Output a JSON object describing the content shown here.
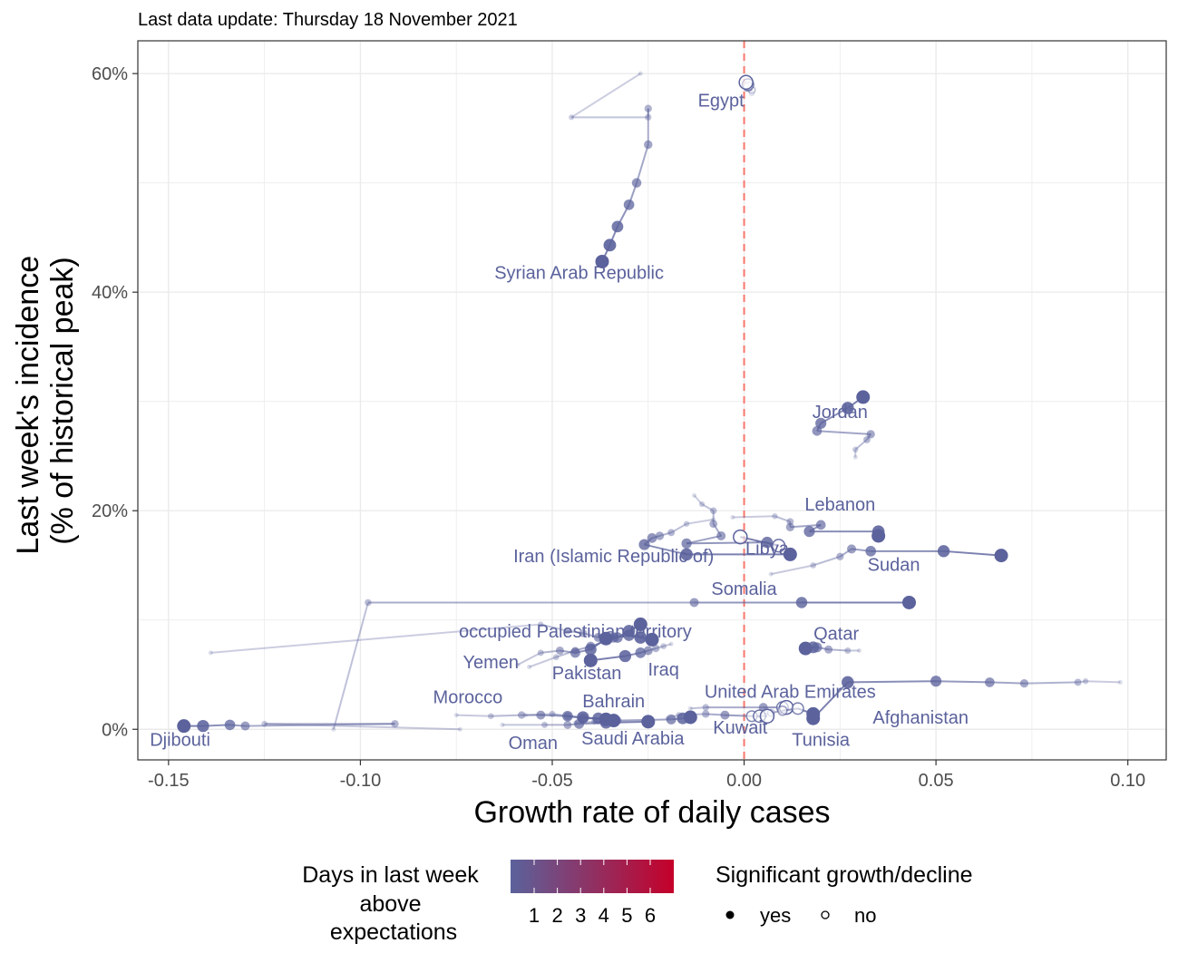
{
  "chart_data": {
    "type": "scatter",
    "subtitle": "Last data update: Thursday 18 November 2021",
    "xlabel": "Growth rate of daily cases",
    "ylabel": [
      "Last week's incidence",
      "(% of historical peak)"
    ],
    "xlim": [
      -0.158,
      0.11
    ],
    "ylim": [
      -2.8,
      63.0
    ],
    "x_ticks": [
      {
        "value": -0.15,
        "label": "-0.15"
      },
      {
        "value": -0.1,
        "label": "-0.10"
      },
      {
        "value": -0.05,
        "label": "-0.05"
      },
      {
        "value": 0.0,
        "label": "0.00"
      },
      {
        "value": 0.05,
        "label": "0.05"
      },
      {
        "value": 0.1,
        "label": "0.10"
      }
    ],
    "y_ticks": [
      {
        "value": 0,
        "label": "0%"
      },
      {
        "value": 20,
        "label": "20%"
      },
      {
        "value": 40,
        "label": "40%"
      },
      {
        "value": 60,
        "label": "60%"
      }
    ],
    "grid": true,
    "reference_line": {
      "x": 0.0,
      "color": "#f8766d",
      "style": "dashed"
    },
    "colors": {
      "series": "#5b629c",
      "low": "#5b629c",
      "high": "#c5002a"
    },
    "series": [
      {
        "name": "Egypt",
        "label_pos": [
          -0.006,
          57.0
        ],
        "points": [
          [
            0.002,
            58.2,
            0
          ],
          [
            0.002,
            58.5,
            0
          ],
          [
            0.001,
            58.8,
            0
          ],
          [
            0.001,
            59.0,
            0
          ],
          [
            0.0005,
            59.2,
            0
          ]
        ]
      },
      {
        "name": "Syrian Arab Republic",
        "label_pos": [
          -0.043,
          41.2
        ],
        "points": [
          [
            -0.027,
            60.0,
            1
          ],
          [
            -0.045,
            56.0,
            1
          ],
          [
            -0.025,
            56.0,
            1
          ],
          [
            -0.025,
            56.8,
            1
          ],
          [
            -0.025,
            53.5,
            1
          ],
          [
            -0.028,
            50.0,
            1
          ],
          [
            -0.03,
            48.0,
            1
          ],
          [
            -0.033,
            46.0,
            1
          ],
          [
            -0.035,
            44.3,
            1
          ],
          [
            -0.037,
            42.8,
            1
          ]
        ]
      },
      {
        "name": "Jordan",
        "label_pos": [
          0.025,
          28.5
        ],
        "points": [
          [
            0.029,
            24.9,
            1
          ],
          [
            0.029,
            25.6,
            1
          ],
          [
            0.032,
            26.5,
            1
          ],
          [
            0.033,
            27.0,
            1
          ],
          [
            0.019,
            27.3,
            1
          ],
          [
            0.02,
            28.0,
            1
          ],
          [
            0.027,
            29.4,
            1
          ],
          [
            0.031,
            30.4,
            1
          ]
        ]
      },
      {
        "name": "Lebanon",
        "label_pos": [
          0.025,
          20.0
        ],
        "points": [
          [
            -0.003,
            19.4,
            1
          ],
          [
            0.008,
            19.5,
            1
          ],
          [
            0.012,
            19.0,
            1
          ],
          [
            0.012,
            18.5,
            1
          ],
          [
            0.02,
            18.7,
            1
          ],
          [
            0.017,
            18.1,
            1
          ],
          [
            0.035,
            18.1,
            1
          ],
          [
            0.035,
            17.7,
            1
          ]
        ]
      },
      {
        "name": "Libya",
        "label_pos": [
          0.006,
          16.0
        ],
        "points": [
          [
            -0.013,
            21.4,
            1
          ],
          [
            -0.011,
            20.6,
            1
          ],
          [
            -0.008,
            20.0,
            1
          ],
          [
            -0.008,
            18.8,
            1
          ],
          [
            -0.006,
            17.7,
            1
          ],
          [
            -0.015,
            17.0,
            1
          ],
          [
            0.006,
            17.1,
            1
          ],
          [
            0.009,
            16.8,
            0
          ],
          [
            -0.001,
            17.6,
            0
          ]
        ]
      },
      {
        "name": "Iran (Islamic Republic of)",
        "label_pos": [
          -0.034,
          15.3
        ],
        "points": [
          [
            -0.008,
            19.2,
            1
          ],
          [
            -0.015,
            18.8,
            1
          ],
          [
            -0.019,
            18.0,
            1
          ],
          [
            -0.022,
            17.7,
            1
          ],
          [
            -0.024,
            17.5,
            1
          ],
          [
            -0.026,
            16.9,
            1
          ],
          [
            -0.015,
            16.0,
            1
          ],
          [
            0.012,
            16.0,
            1
          ]
        ]
      },
      {
        "name": "Sudan",
        "label_pos": [
          0.039,
          14.5
        ],
        "points": [
          [
            0.007,
            14.2,
            1
          ],
          [
            0.018,
            15.0,
            1
          ],
          [
            0.025,
            15.8,
            1
          ],
          [
            0.028,
            16.5,
            1
          ],
          [
            0.033,
            16.3,
            1
          ],
          [
            0.052,
            16.3,
            1
          ],
          [
            0.067,
            15.9,
            1
          ]
        ]
      },
      {
        "name": "Somalia",
        "label_pos": [
          0.0,
          12.3
        ],
        "points": [
          [
            -0.107,
            0.0,
            1
          ],
          [
            -0.098,
            11.6,
            1
          ],
          [
            -0.013,
            11.6,
            1
          ],
          [
            0.015,
            11.6,
            1
          ],
          [
            0.043,
            11.6,
            1
          ]
        ]
      },
      {
        "name": "occupied Palestinian territory",
        "label_pos": [
          -0.044,
          8.4
        ],
        "points": [
          [
            -0.139,
            7.0,
            1
          ],
          [
            -0.053,
            9.6,
            1
          ],
          [
            -0.046,
            9.0,
            1
          ],
          [
            -0.042,
            8.8,
            1
          ],
          [
            -0.038,
            8.4,
            1
          ],
          [
            -0.034,
            8.4,
            1
          ],
          [
            -0.03,
            8.6,
            1
          ],
          [
            -0.027,
            8.4,
            1
          ],
          [
            -0.024,
            8.2,
            1
          ]
        ]
      },
      {
        "name": "Yemen",
        "label_pos": [
          -0.066,
          5.6
        ],
        "points": [
          [
            -0.059,
            5.9,
            1
          ],
          [
            -0.053,
            7.0,
            1
          ],
          [
            -0.048,
            7.2,
            1
          ],
          [
            -0.044,
            7.0,
            1
          ],
          [
            -0.04,
            7.3,
            1
          ],
          [
            -0.036,
            8.3,
            1
          ]
        ]
      },
      {
        "name": "Pakistan",
        "label_pos": [
          -0.041,
          4.6
        ],
        "points": [
          [
            -0.056,
            5.7,
            1
          ],
          [
            -0.049,
            6.6,
            1
          ],
          [
            -0.044,
            7.2,
            1
          ],
          [
            -0.04,
            7.6,
            1
          ],
          [
            -0.033,
            8.4,
            1
          ],
          [
            -0.03,
            9.0,
            1
          ],
          [
            -0.027,
            9.6,
            1
          ]
        ]
      },
      {
        "name": "Iraq",
        "label_pos": [
          -0.021,
          4.9
        ],
        "points": [
          [
            -0.019,
            7.8,
            1
          ],
          [
            -0.021,
            7.6,
            1
          ],
          [
            -0.023,
            7.4,
            1
          ],
          [
            -0.025,
            7.2,
            1
          ],
          [
            -0.027,
            7.0,
            1
          ],
          [
            -0.031,
            6.7,
            1
          ],
          [
            -0.04,
            6.3,
            1
          ]
        ]
      },
      {
        "name": "Qatar",
        "label_pos": [
          0.024,
          8.2
        ],
        "points": [
          [
            0.03,
            7.2,
            1
          ],
          [
            0.027,
            7.2,
            1
          ],
          [
            0.022,
            7.3,
            1
          ],
          [
            0.019,
            7.5,
            1
          ],
          [
            0.018,
            7.5,
            1
          ],
          [
            0.016,
            7.4,
            1
          ]
        ]
      },
      {
        "name": "Afghanistan",
        "label_pos": [
          0.046,
          0.5
        ],
        "points": [
          [
            0.098,
            4.3,
            1
          ],
          [
            0.089,
            4.4,
            1
          ],
          [
            0.087,
            4.3,
            1
          ],
          [
            0.073,
            4.2,
            1
          ],
          [
            0.064,
            4.3,
            1
          ],
          [
            0.05,
            4.4,
            1
          ],
          [
            0.027,
            4.3,
            1
          ],
          [
            0.018,
            1.0,
            1
          ]
        ]
      },
      {
        "name": "United Arab Emirates",
        "label_pos": [
          0.012,
          2.9
        ],
        "points": [
          [
            -0.014,
            1.9,
            1
          ],
          [
            -0.01,
            2.0,
            1
          ],
          [
            0.005,
            2.0,
            1
          ],
          [
            0.01,
            2.0,
            0
          ],
          [
            0.011,
            2.0,
            0
          ]
        ]
      },
      {
        "name": "Tunisia",
        "label_pos": [
          0.02,
          -1.5
        ],
        "points": [
          [
            0.004,
            1.3,
            0
          ],
          [
            0.007,
            1.5,
            0
          ],
          [
            0.01,
            1.7,
            0
          ],
          [
            0.014,
            1.9,
            0
          ],
          [
            0.018,
            1.4,
            1
          ]
        ]
      },
      {
        "name": "Kuwait",
        "label_pos": [
          -0.001,
          -0.4
        ],
        "points": [
          [
            -0.02,
            1.0,
            1
          ],
          [
            -0.017,
            1.3,
            1
          ],
          [
            -0.01,
            1.4,
            1
          ],
          [
            -0.005,
            1.3,
            1
          ],
          [
            0.002,
            1.2,
            0
          ],
          [
            0.004,
            1.2,
            0
          ],
          [
            0.006,
            1.2,
            0
          ]
        ]
      },
      {
        "name": "Bahrain",
        "label_pos": [
          -0.034,
          2.0
        ],
        "points": [
          [
            -0.057,
            1.3,
            1
          ],
          [
            -0.05,
            1.4,
            1
          ],
          [
            -0.046,
            1.2,
            1
          ],
          [
            -0.042,
            1.0,
            1
          ],
          [
            -0.038,
            1.0,
            1
          ],
          [
            -0.034,
            0.8,
            1
          ]
        ]
      },
      {
        "name": "Morocco",
        "label_pos": [
          -0.072,
          2.4
        ],
        "points": [
          [
            -0.075,
            1.3,
            1
          ],
          [
            -0.066,
            1.2,
            1
          ],
          [
            -0.058,
            1.3,
            1
          ],
          [
            -0.053,
            1.3,
            1
          ],
          [
            -0.046,
            1.2,
            1
          ],
          [
            -0.042,
            1.1,
            1
          ],
          [
            -0.036,
            0.9,
            1
          ]
        ]
      },
      {
        "name": "Oman",
        "label_pos": [
          -0.055,
          -1.8
        ],
        "points": [
          [
            -0.063,
            0.4,
            1
          ],
          [
            -0.052,
            0.4,
            1
          ],
          [
            -0.046,
            0.4,
            1
          ],
          [
            -0.043,
            0.5,
            1
          ],
          [
            -0.036,
            0.6,
            1
          ],
          [
            -0.025,
            0.7,
            1
          ]
        ]
      },
      {
        "name": "Saudi Arabia",
        "label_pos": [
          -0.029,
          -1.4
        ],
        "points": [
          [
            -0.044,
            0.6,
            1
          ],
          [
            -0.039,
            0.7,
            1
          ],
          [
            -0.033,
            0.8,
            1
          ],
          [
            -0.019,
            0.9,
            1
          ],
          [
            -0.016,
            1.0,
            1
          ],
          [
            -0.014,
            1.1,
            1
          ]
        ]
      },
      {
        "name": "Djibouti",
        "label_pos": [
          -0.147,
          -1.5
        ],
        "points": [
          [
            -0.074,
            0.0,
            1
          ],
          [
            -0.125,
            0.5,
            1
          ],
          [
            -0.091,
            0.5,
            1
          ],
          [
            -0.13,
            0.3,
            1
          ],
          [
            -0.134,
            0.4,
            1
          ],
          [
            -0.141,
            0.3,
            1
          ],
          [
            -0.146,
            0.3,
            1
          ]
        ]
      }
    ],
    "legend": {
      "placement": "bottom",
      "color_title": [
        "Days in last week",
        "above",
        "expectations"
      ],
      "color_ticks": [
        "1",
        "2",
        "3",
        "4",
        "5",
        "6"
      ],
      "shape_title": "Significant growth/decline",
      "shape_items": [
        {
          "shape": "filled-circle",
          "label": "yes"
        },
        {
          "shape": "open-circle",
          "label": "no"
        }
      ]
    }
  }
}
